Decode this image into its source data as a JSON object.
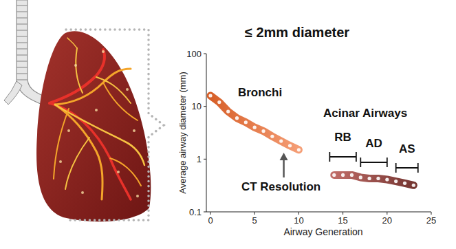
{
  "chart_data": {
    "type": "line",
    "title": "≤ 2mm diameter",
    "x_label": "Airway Generation",
    "y_label": "Average airway diameter (mm)",
    "log": "y",
    "grid": false,
    "marker": "circle",
    "xlim": [
      0,
      25
    ],
    "xticks": [
      0,
      5,
      10,
      15,
      20,
      25
    ],
    "ylim": [
      0.1,
      100
    ],
    "yticks": [
      0.1,
      1,
      10,
      100
    ],
    "series": [
      {
        "name": "Bronchi",
        "color": "#ef6a2c",
        "x": [
          0,
          1,
          2,
          3,
          4,
          5,
          6,
          7,
          8,
          9,
          10
        ],
        "values": [
          16,
          12,
          8,
          6,
          5,
          4,
          3.4,
          2.7,
          2.2,
          1.8,
          1.5
        ]
      },
      {
        "name": "Acinar Airways",
        "color": "#b4524c",
        "x": [
          14,
          15,
          16,
          17,
          18,
          19,
          20,
          21,
          22,
          23
        ],
        "values": [
          0.5,
          0.5,
          0.5,
          0.45,
          0.43,
          0.43,
          0.41,
          0.38,
          0.35,
          0.32
        ]
      }
    ],
    "annotations": [
      {
        "text": "RB",
        "x": [
          13.5,
          16.5
        ]
      },
      {
        "text": "AD",
        "x": [
          17,
          20
        ]
      },
      {
        "text": "AS",
        "x": [
          21,
          23.5
        ]
      },
      {
        "text": "CT Resolution",
        "x": 8.3
      }
    ]
  }
}
